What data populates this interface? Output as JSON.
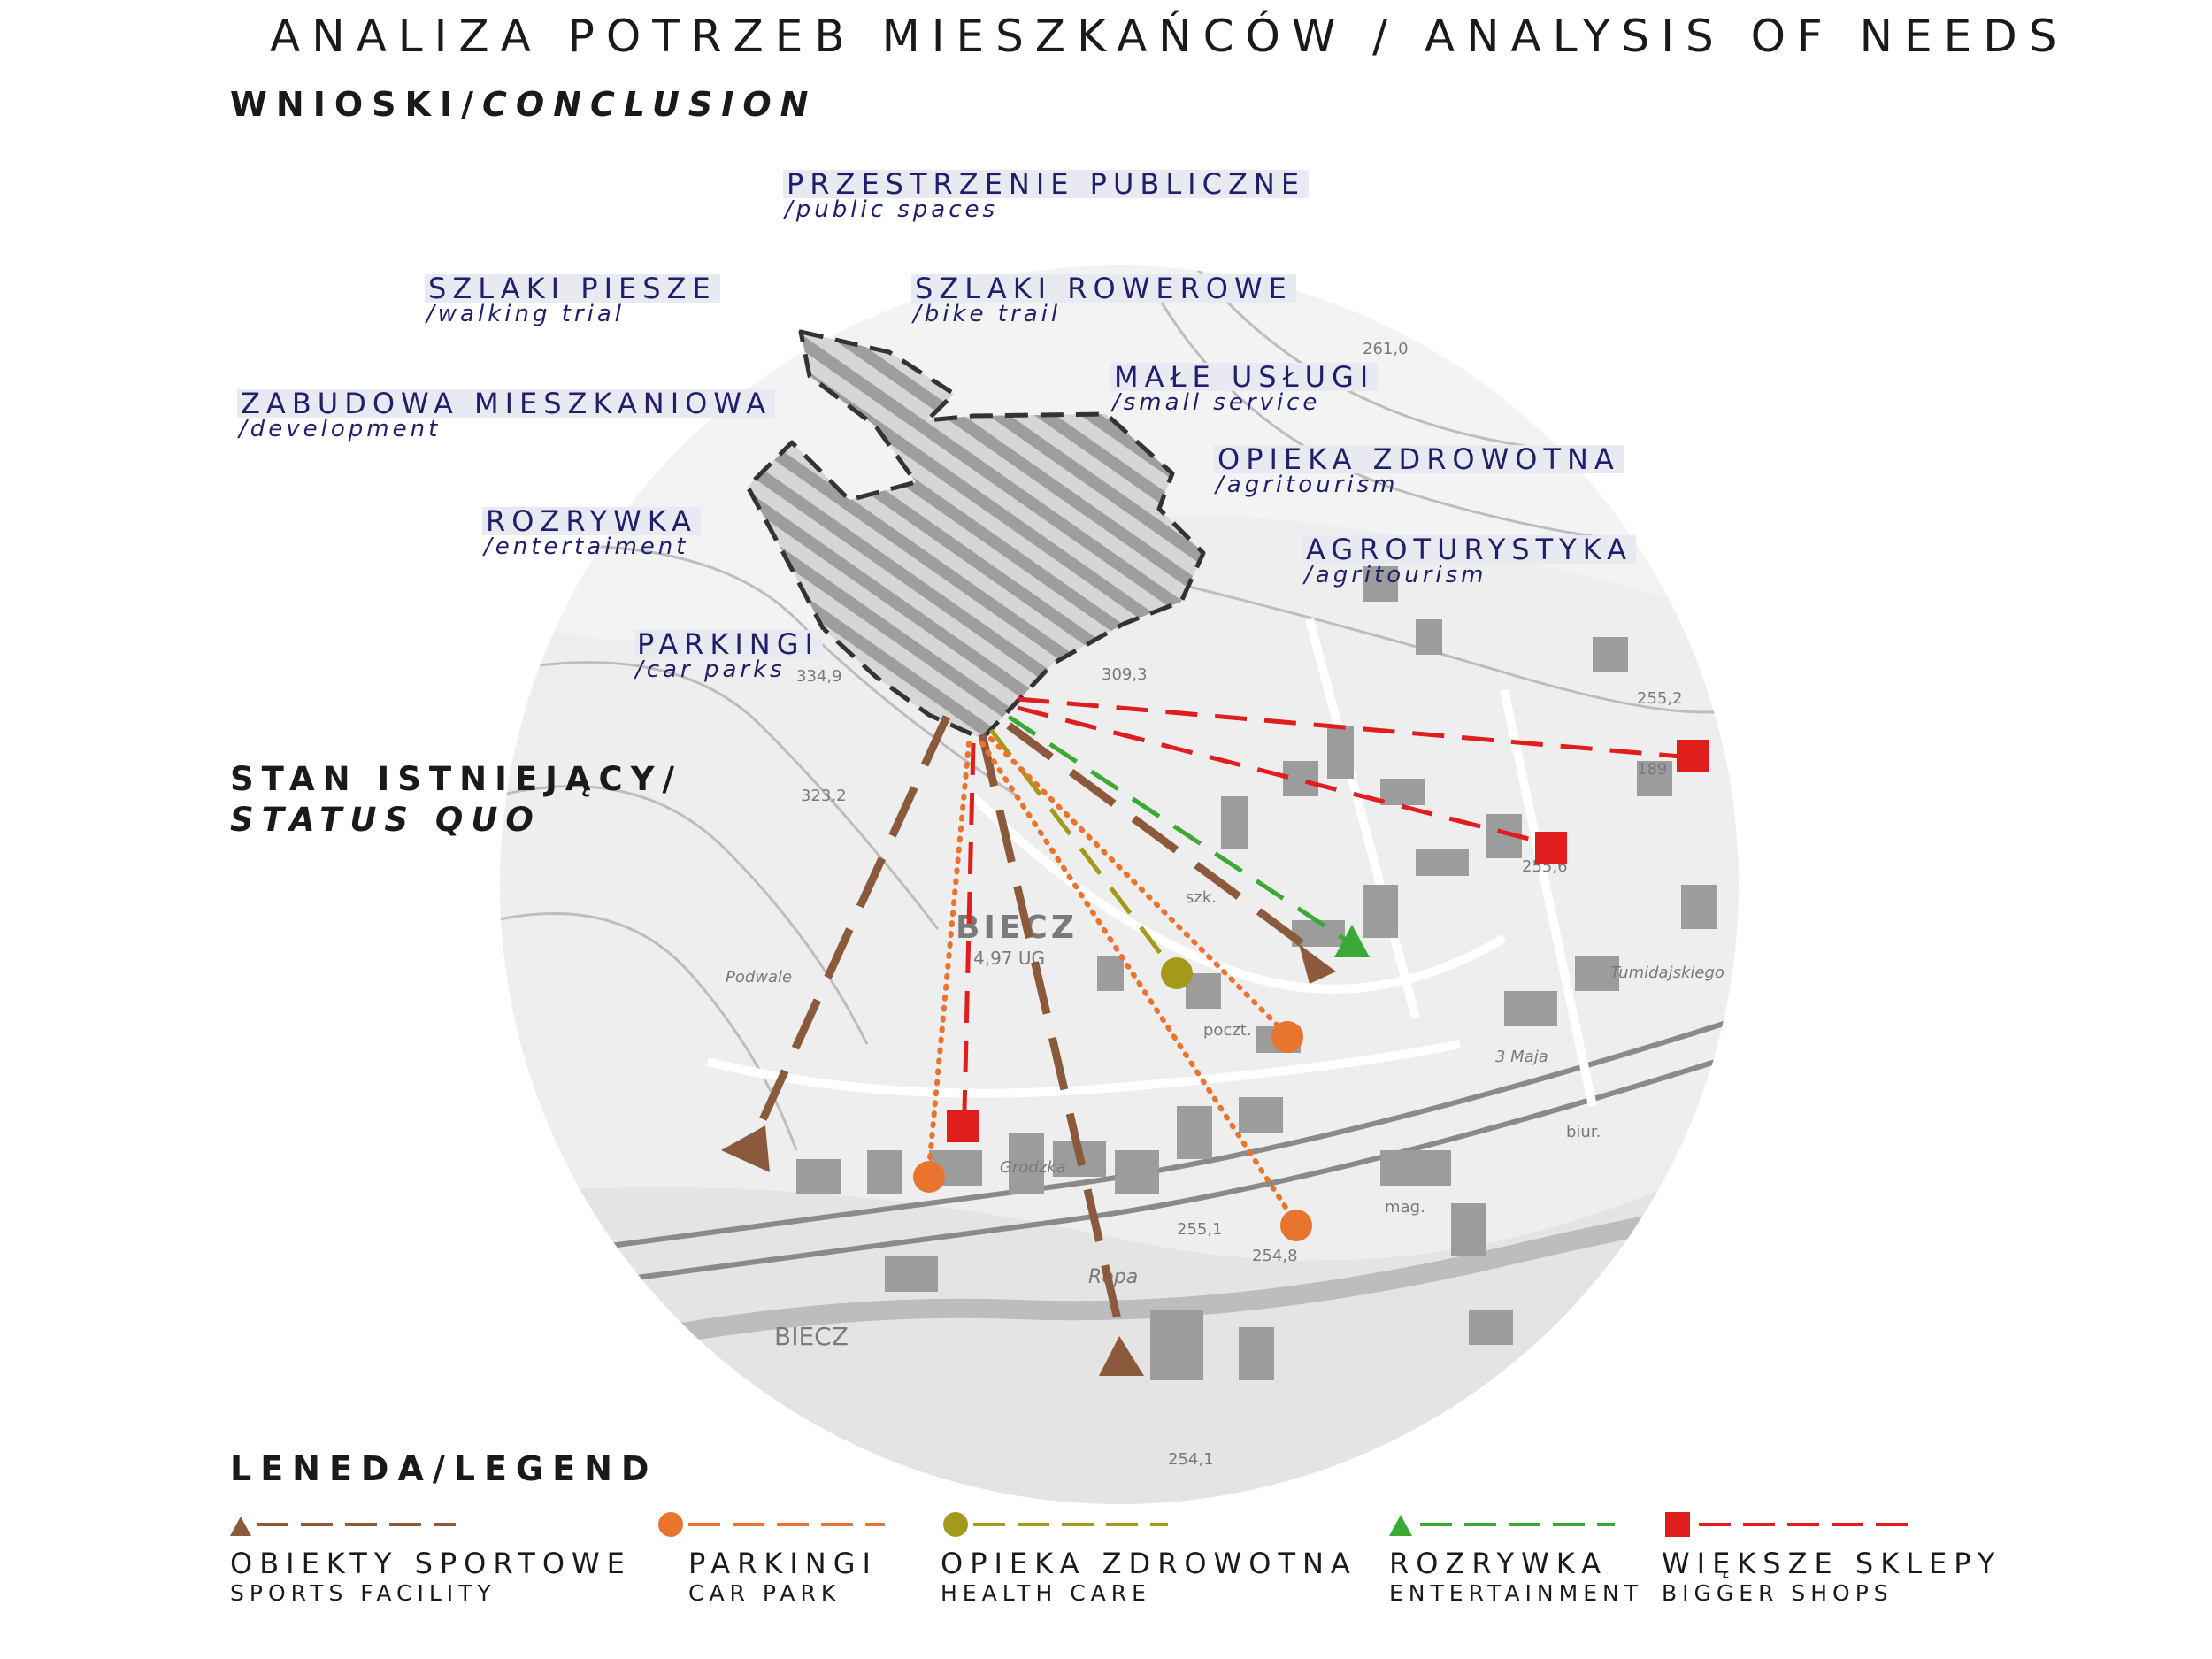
{
  "header": {
    "title": "ANALIZA POTRZEB MIESZKAŃCÓW / ANALYSIS OF NEEDS",
    "conclusion_pl": "WNIOSKI/",
    "conclusion_en": "CONCLUSION"
  },
  "status": {
    "pl": "STAN ISTNIEJĄCY/",
    "en": "STATUS QUO"
  },
  "needs": [
    {
      "pl": "PRZESTRZENIE PUBLICZNE",
      "en": "/public spaces"
    },
    {
      "pl": "SZLAKI PIESZE",
      "en": "/walking trial"
    },
    {
      "pl": "SZLAKI ROWEROWE",
      "en": "/bike trail"
    },
    {
      "pl": "ZABUDOWA MIESZKANIOWA",
      "en": "/development"
    },
    {
      "pl": "MAŁE USŁUGI",
      "en": "/small service"
    },
    {
      "pl": "OPIEKA ZDROWOTNA",
      "en": "/agritourism"
    },
    {
      "pl": "ROZRYWKA",
      "en": "/entertaiment"
    },
    {
      "pl": "AGROTURYSTYKA",
      "en": "/agritourism"
    },
    {
      "pl": "PARKINGI",
      "en": "/car parks"
    }
  ],
  "map_labels": {
    "town": "BIECZ",
    "town_sub": "4,97 UG",
    "town2": "BIECZ",
    "river": "Ropa",
    "elev1": "334,9",
    "elev2": "309,3",
    "elev3": "323,2",
    "elev4": "255,2",
    "elev5": "255,6",
    "elev6": "255,1",
    "elev7": "254,8",
    "elev8": "261,0",
    "elev9": "189",
    "elev10": "254,1",
    "street1": "Podwale",
    "street2": "Grodzka",
    "street3": "3 Maja",
    "street4": "Tumidajskiego",
    "poi1": "szk.",
    "poi2": "poczt.",
    "poi3": "mag.",
    "poi4": "biur."
  },
  "legend": {
    "title": "LENEDA/LEGEND",
    "items": [
      {
        "pl": "OBIEKTY SPORTOWE",
        "en": "SPORTS FACILITY",
        "color": "#8b5a3c",
        "marker": "triangle"
      },
      {
        "pl": "PARKINGI",
        "en": "CAR PARK",
        "color": "#e8742e",
        "marker": "circle"
      },
      {
        "pl": "OPIEKA ZDROWOTNA",
        "en": "HEALTH CARE",
        "color": "#a39a1c",
        "marker": "circle"
      },
      {
        "pl": "ROZRYWKA",
        "en": "ENTERTAINMENT",
        "color": "#3aaa35",
        "marker": "triangle"
      },
      {
        "pl": "WIĘKSZE SKLEPY",
        "en": "BIGGER SHOPS",
        "color": "#e01e1e",
        "marker": "square"
      }
    ]
  },
  "colors": {
    "sport": "#8b5a3c",
    "parking": "#e8742e",
    "health": "#a39a1c",
    "entertainment": "#3aaa35",
    "shops": "#e01e1e",
    "labels": "#20206a"
  }
}
